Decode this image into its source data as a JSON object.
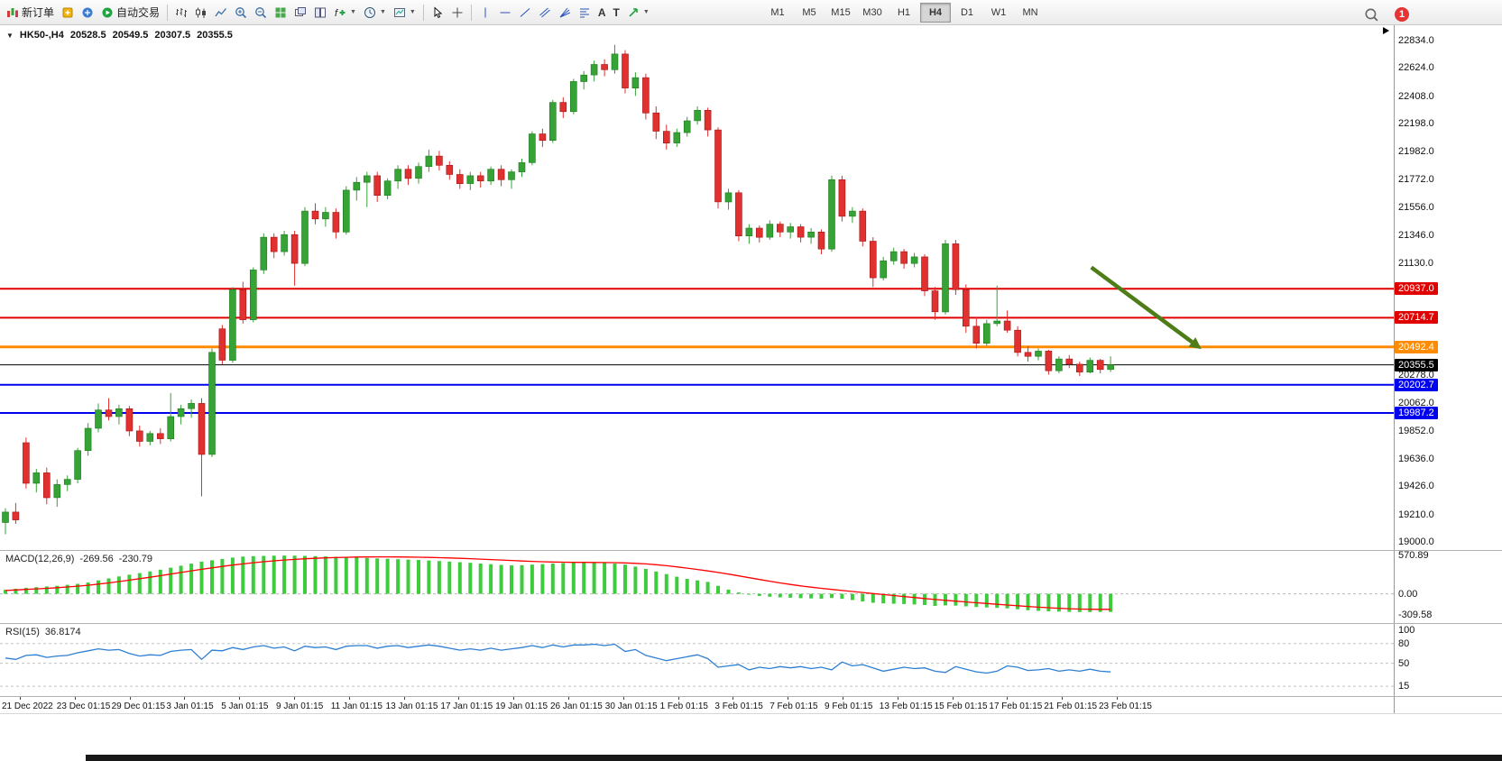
{
  "toolbar": {
    "new_order_label": "新订单",
    "auto_trading_label": "自动交易",
    "timeframes": [
      "M1",
      "M5",
      "M15",
      "M30",
      "H1",
      "H4",
      "D1",
      "W1",
      "MN"
    ],
    "active_timeframe": "H4",
    "notification_count": "1"
  },
  "chart_header": {
    "symbol": "HK50-,H4",
    "open": "20528.5",
    "high": "20549.5",
    "low": "20307.5",
    "close": "20355.5"
  },
  "colors": {
    "bull": "#35a335",
    "bull_edge": "#1e7a1e",
    "bear": "#e03030",
    "bear_edge": "#a31414",
    "background": "#ffffff"
  },
  "chart_data": [
    {
      "type": "candlestick",
      "title": "HK50-,H4",
      "ohlc_last": {
        "open": 20528.5,
        "high": 20549.5,
        "low": 20307.5,
        "close": 20355.5
      },
      "y_axis": {
        "max": 22950,
        "min": 18940,
        "labels": [
          "22834.0",
          "22624.0",
          "22408.0",
          "22198.0",
          "21982.0",
          "21772.0",
          "21556.0",
          "21346.0",
          "21130.0",
          "20920.0",
          "20278.0",
          "20062.0",
          "19852.0",
          "19636.0",
          "19426.0",
          "19210.0",
          "19000.0"
        ]
      },
      "x_axis_labels": [
        "21 Dec 2022",
        "23 Dec 01:15",
        "29 Dec 01:15",
        "3 Jan 01:15",
        "5 Jan 01:15",
        "9 Jan 01:15",
        "11 Jan 01:15",
        "13 Jan 01:15",
        "17 Jan 01:15",
        "19 Jan 01:15",
        "26 Jan 01:15",
        "30 Jan 01:15",
        "1 Feb 01:15",
        "3 Feb 01:15",
        "7 Feb 01:15",
        "9 Feb 01:15",
        "13 Feb 01:15",
        "15 Feb 01:15",
        "17 Feb 01:15",
        "21 Feb 01:15",
        "23 Feb 01:15"
      ],
      "hlines": [
        {
          "price": 20937.0,
          "label": "20937.0",
          "color": "#e00000",
          "width": 2
        },
        {
          "price": 20714.7,
          "label": "20714.7",
          "color": "#e00000",
          "width": 2
        },
        {
          "price": 20492.4,
          "label": "20492.4",
          "color": "#ff8c00",
          "width": 3
        },
        {
          "price": 20355.5,
          "label": "20355.5",
          "color": "#000000",
          "width": 1
        },
        {
          "price": 20202.7,
          "label": "20202.7",
          "color": "#0000ee",
          "width": 2
        },
        {
          "price": 19987.2,
          "label": "19987.2",
          "color": "#0000ee",
          "width": 2
        }
      ],
      "annotation_arrow": {
        "from_x_frac": 0.783,
        "from_price": 21100,
        "to_x_frac": 0.862,
        "to_price": 20476,
        "color": "#4e7d18"
      },
      "candles": [
        [
          19150,
          19260,
          19060,
          19230
        ],
        [
          19230,
          19300,
          19140,
          19170
        ],
        [
          19760,
          19800,
          19410,
          19450
        ],
        [
          19450,
          19560,
          19380,
          19530
        ],
        [
          19530,
          19570,
          19290,
          19340
        ],
        [
          19340,
          19480,
          19270,
          19440
        ],
        [
          19440,
          19510,
          19390,
          19480
        ],
        [
          19480,
          19720,
          19450,
          19700
        ],
        [
          19700,
          19910,
          19660,
          19870
        ],
        [
          19870,
          20060,
          19840,
          20010
        ],
        [
          20010,
          20100,
          19930,
          19960
        ],
        [
          19960,
          20050,
          19900,
          20020
        ],
        [
          20020,
          20040,
          19810,
          19850
        ],
        [
          19850,
          19890,
          19730,
          19770
        ],
        [
          19770,
          19850,
          19740,
          19830
        ],
        [
          19830,
          19870,
          19750,
          19790
        ],
        [
          19790,
          20140,
          19770,
          19960
        ],
        [
          19960,
          20050,
          19900,
          20020
        ],
        [
          20020,
          20090,
          19950,
          20060
        ],
        [
          20060,
          20100,
          19350,
          19670
        ],
        [
          19670,
          20480,
          19650,
          20450
        ],
        [
          20630,
          20660,
          20360,
          20390
        ],
        [
          20390,
          20950,
          20370,
          20930
        ],
        [
          20930,
          20990,
          20670,
          20700
        ],
        [
          20700,
          21100,
          20680,
          21080
        ],
        [
          21080,
          21360,
          21050,
          21330
        ],
        [
          21330,
          21360,
          21170,
          21220
        ],
        [
          21220,
          21380,
          21190,
          21350
        ],
        [
          21350,
          21380,
          20960,
          21130
        ],
        [
          21130,
          21560,
          21110,
          21530
        ],
        [
          21530,
          21590,
          21430,
          21470
        ],
        [
          21470,
          21560,
          21410,
          21520
        ],
        [
          21520,
          21550,
          21320,
          21370
        ],
        [
          21370,
          21720,
          21350,
          21690
        ],
        [
          21690,
          21790,
          21610,
          21750
        ],
        [
          21750,
          21830,
          21560,
          21800
        ],
        [
          21800,
          21830,
          21600,
          21650
        ],
        [
          21650,
          21780,
          21620,
          21760
        ],
        [
          21760,
          21880,
          21700,
          21850
        ],
        [
          21850,
          21880,
          21730,
          21780
        ],
        [
          21780,
          21900,
          21740,
          21870
        ],
        [
          21870,
          22000,
          21830,
          21950
        ],
        [
          21950,
          21990,
          21840,
          21880
        ],
        [
          21880,
          21910,
          21770,
          21810
        ],
        [
          21810,
          21850,
          21700,
          21740
        ],
        [
          21740,
          21830,
          21690,
          21800
        ],
        [
          21800,
          21830,
          21710,
          21760
        ],
        [
          21760,
          21870,
          21730,
          21850
        ],
        [
          21850,
          21880,
          21720,
          21770
        ],
        [
          21770,
          21850,
          21700,
          21830
        ],
        [
          21830,
          21930,
          21790,
          21900
        ],
        [
          21900,
          22140,
          21880,
          22120
        ],
        [
          22120,
          22160,
          22020,
          22070
        ],
        [
          22070,
          22380,
          22050,
          22360
        ],
        [
          22360,
          22400,
          22240,
          22290
        ],
        [
          22290,
          22540,
          22270,
          22520
        ],
        [
          22520,
          22600,
          22460,
          22570
        ],
        [
          22570,
          22680,
          22520,
          22650
        ],
        [
          22650,
          22690,
          22560,
          22610
        ],
        [
          22610,
          22800,
          22580,
          22730
        ],
        [
          22730,
          22760,
          22430,
          22470
        ],
        [
          22470,
          22590,
          22410,
          22550
        ],
        [
          22550,
          22580,
          22230,
          22280
        ],
        [
          22280,
          22330,
          22080,
          22140
        ],
        [
          22140,
          22190,
          22000,
          22050
        ],
        [
          22050,
          22160,
          22020,
          22130
        ],
        [
          22130,
          22250,
          22100,
          22220
        ],
        [
          22220,
          22330,
          22190,
          22300
        ],
        [
          22300,
          22320,
          22100,
          22150
        ],
        [
          22150,
          22170,
          21550,
          21600
        ],
        [
          21600,
          21700,
          21540,
          21670
        ],
        [
          21670,
          21690,
          21300,
          21340
        ],
        [
          21340,
          21430,
          21280,
          21400
        ],
        [
          21400,
          21420,
          21290,
          21330
        ],
        [
          21330,
          21460,
          21310,
          21430
        ],
        [
          21430,
          21450,
          21330,
          21370
        ],
        [
          21370,
          21440,
          21320,
          21410
        ],
        [
          21410,
          21430,
          21290,
          21330
        ],
        [
          21330,
          21400,
          21280,
          21370
        ],
        [
          21370,
          21390,
          21200,
          21240
        ],
        [
          21240,
          21800,
          21220,
          21770
        ],
        [
          21770,
          21800,
          21450,
          21490
        ],
        [
          21490,
          21560,
          21440,
          21530
        ],
        [
          21530,
          21550,
          21260,
          21300
        ],
        [
          21300,
          21330,
          20950,
          21020
        ],
        [
          21020,
          21180,
          21000,
          21150
        ],
        [
          21150,
          21250,
          21120,
          21220
        ],
        [
          21220,
          21240,
          21090,
          21130
        ],
        [
          21130,
          21210,
          21100,
          21180
        ],
        [
          21180,
          21200,
          20880,
          20920
        ],
        [
          20920,
          20950,
          20700,
          20760
        ],
        [
          20760,
          21310,
          20740,
          21280
        ],
        [
          21280,
          21310,
          20890,
          20930
        ],
        [
          20930,
          20970,
          20600,
          20650
        ],
        [
          20650,
          20720,
          20480,
          20520
        ],
        [
          20520,
          20700,
          20500,
          20670
        ],
        [
          20670,
          20960,
          20650,
          20690
        ],
        [
          20690,
          20770,
          20600,
          20620
        ],
        [
          20620,
          20650,
          20420,
          20450
        ],
        [
          20450,
          20500,
          20380,
          20420
        ],
        [
          20420,
          20480,
          20390,
          20460
        ],
        [
          20460,
          20470,
          20280,
          20310
        ],
        [
          20310,
          20420,
          20290,
          20400
        ],
        [
          20400,
          20430,
          20330,
          20360
        ],
        [
          20360,
          20380,
          20270,
          20300
        ],
        [
          20300,
          20410,
          20290,
          20390
        ],
        [
          20390,
          20400,
          20290,
          20320
        ],
        [
          20320,
          20420,
          20300,
          20355.5
        ]
      ]
    },
    {
      "type": "macd",
      "label": "MACD(12,26,9)",
      "macd_value": "-269.56",
      "signal_value": "-230.79",
      "y_axis_labels": [
        "570.89",
        "0.00",
        "-309.58"
      ],
      "y_axis": {
        "max": 640,
        "min": -435
      },
      "histogram_color": "#3ecc3e",
      "signal_color": "#ff0000",
      "histogram": [
        60,
        75,
        90,
        100,
        110,
        120,
        135,
        150,
        170,
        200,
        230,
        260,
        285,
        310,
        335,
        360,
        390,
        420,
        450,
        480,
        500,
        520,
        540,
        555,
        562,
        566,
        569,
        570.89,
        569,
        566,
        562,
        558,
        553,
        547,
        541,
        535,
        529,
        523,
        517,
        511,
        505,
        498,
        490,
        482,
        472,
        462,
        452,
        442,
        432,
        424,
        428,
        436,
        444,
        452,
        458,
        464,
        468,
        466,
        460,
        452,
        436,
        406,
        372,
        334,
        294,
        256,
        224,
        200,
        178,
        120,
        64,
        20,
        -12,
        -30,
        -42,
        -52,
        -58,
        -64,
        -68,
        -72,
        -62,
        -74,
        -92,
        -112,
        -132,
        -142,
        -148,
        -152,
        -158,
        -166,
        -180,
        -172,
        -176,
        -186,
        -196,
        -202,
        -208,
        -216,
        -230,
        -244,
        -254,
        -260,
        -264,
        -268,
        -271,
        -271,
        -270,
        -269.56
      ],
      "signal": [
        50,
        58,
        66,
        74,
        82,
        92,
        102,
        114,
        128,
        145,
        163,
        183,
        204,
        226,
        248,
        271,
        295,
        319,
        343,
        366,
        388,
        409,
        429,
        447,
        464,
        479,
        492,
        504,
        514,
        523,
        530,
        536,
        541,
        545,
        548,
        550,
        551,
        551,
        550,
        548,
        546,
        543,
        539,
        535,
        530,
        524,
        518,
        511,
        504,
        497,
        490,
        484,
        479,
        475,
        472,
        470,
        469,
        468,
        467,
        465,
        461,
        455,
        446,
        434,
        419,
        402,
        383,
        363,
        342,
        319,
        294,
        268,
        241,
        214,
        188,
        163,
        140,
        119,
        100,
        82,
        66,
        50,
        35,
        20,
        5,
        -10,
        -25,
        -40,
        -55,
        -70,
        -84,
        -97,
        -109,
        -121,
        -133,
        -144,
        -155,
        -166,
        -177,
        -188,
        -198,
        -207,
        -215,
        -222,
        -227,
        -230,
        -231,
        -230.79
      ]
    },
    {
      "type": "rsi",
      "label": "RSI(15)",
      "value": "36.8174",
      "y_axis_labels": [
        "100",
        "80",
        "50",
        "15"
      ],
      "levels": [
        80,
        50,
        15
      ],
      "y_axis": {
        "max": 110,
        "min": 0
      },
      "line_color": "#2d7fd3",
      "values": [
        58,
        56,
        62,
        63,
        59,
        61,
        62,
        66,
        69,
        72,
        70,
        71,
        65,
        61,
        63,
        62,
        68,
        70,
        71,
        56,
        70,
        69,
        74,
        71,
        75,
        77,
        73,
        75,
        69,
        76,
        74,
        75,
        71,
        76,
        77,
        77,
        73,
        76,
        77,
        74,
        76,
        78,
        76,
        73,
        70,
        72,
        70,
        73,
        70,
        72,
        74,
        77,
        74,
        78,
        75,
        78,
        78,
        79,
        77,
        79,
        68,
        71,
        62,
        58,
        54,
        57,
        60,
        63,
        57,
        44,
        46,
        48,
        40,
        44,
        42,
        45,
        43,
        45,
        42,
        44,
        40,
        52,
        46,
        48,
        43,
        38,
        41,
        44,
        42,
        43,
        38,
        36,
        45,
        41,
        37,
        35,
        38,
        46,
        44,
        39,
        40,
        42,
        38,
        40,
        38,
        41,
        38,
        36.8
      ]
    }
  ]
}
